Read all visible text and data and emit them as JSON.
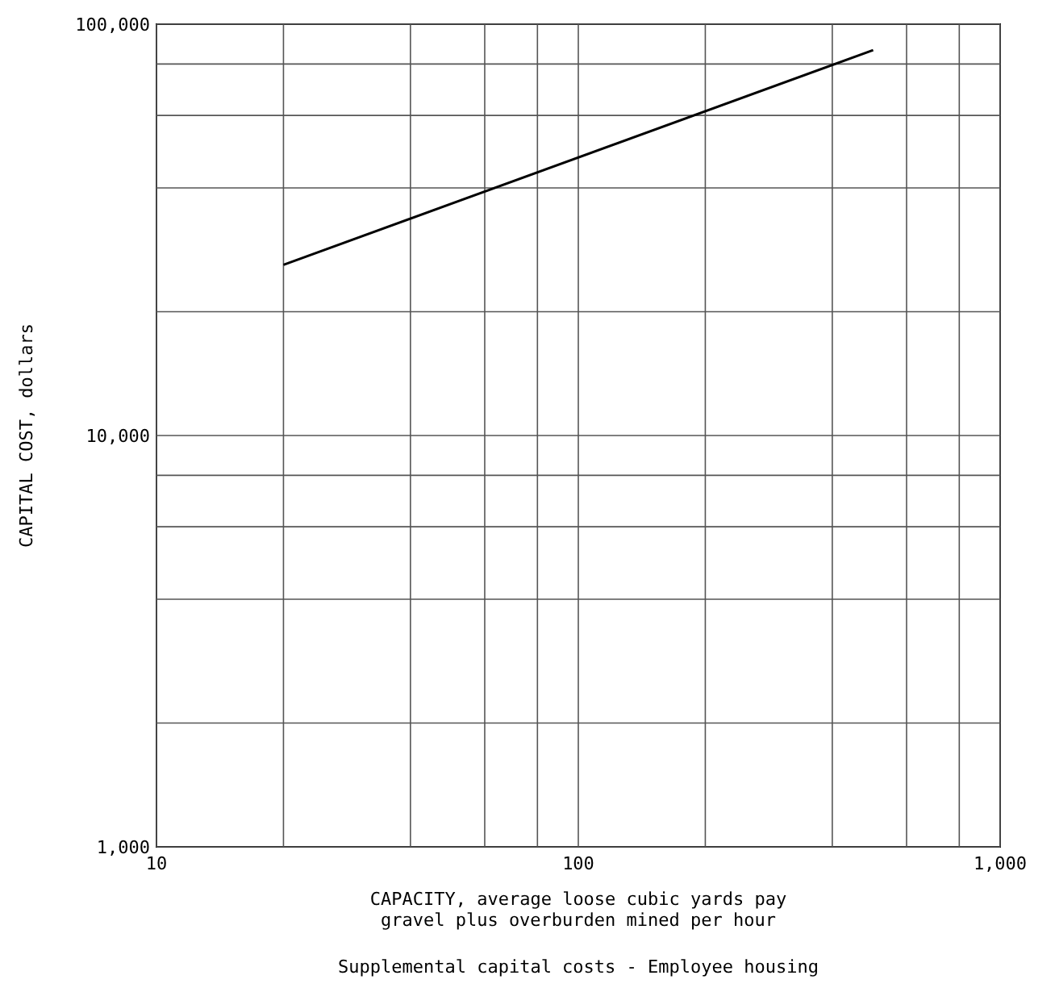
{
  "chart_data": {
    "type": "line",
    "title": "Supplemental capital costs - Employee housing",
    "xlabel": "CAPACITY, average loose cubic yards pay\ngravel plus overburden mined per hour",
    "ylabel": "CAPITAL COST, dollars",
    "x": [
      20,
      500
    ],
    "series": [
      {
        "color": "#000000",
        "values": [
          26000,
          86500
        ]
      }
    ],
    "log": "xy",
    "grid": true,
    "marker": "none",
    "line_style": "solid",
    "xlim": [
      10,
      1000
    ],
    "ylim": [
      1000,
      100000
    ],
    "xticks": [
      10,
      {
        "value": 20,
        "label": null
      },
      {
        "value": 40,
        "label": null
      },
      {
        "value": 60,
        "label": null
      },
      {
        "value": 80,
        "label": null
      },
      100,
      {
        "value": 200,
        "label": null
      },
      {
        "value": 400,
        "label": null
      },
      {
        "value": 600,
        "label": null
      },
      {
        "value": 800,
        "label": null
      },
      {
        "value": 1000,
        "label": "1,000"
      }
    ],
    "yticks": [
      {
        "value": 1000,
        "label": "1,000"
      },
      {
        "value": 2000,
        "label": null
      },
      {
        "value": 4000,
        "label": null
      },
      {
        "value": 6000,
        "label": null
      },
      {
        "value": 8000,
        "label": null
      },
      {
        "value": 10000,
        "label": "10,000"
      },
      {
        "value": 20000,
        "label": null
      },
      {
        "value": 40000,
        "label": null
      },
      {
        "value": 60000,
        "label": null
      },
      {
        "value": 80000,
        "label": null
      },
      {
        "value": 100000,
        "label": "100,000"
      }
    ]
  }
}
